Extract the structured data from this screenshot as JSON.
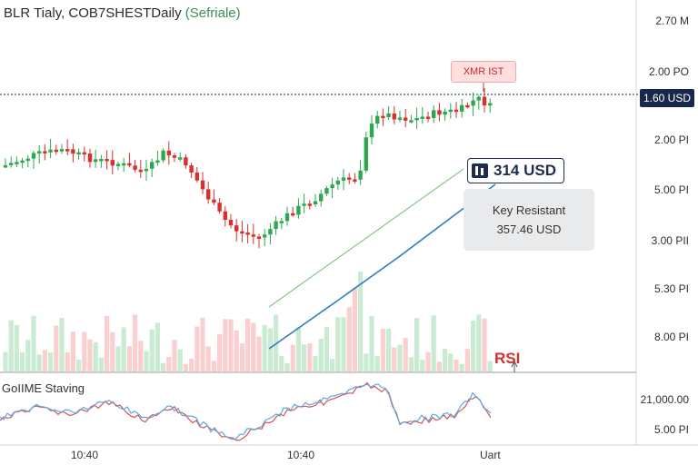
{
  "header": {
    "title": "BLR Tialy, COB7SHESTDaily",
    "tag": "(Sefriale)"
  },
  "price_axis": {
    "labels": [
      "2.70 M",
      "2.00 PO",
      "2.00 PI",
      "5.00 PI",
      "3.00 PII",
      "5.30 PI",
      "8.00 PI"
    ]
  },
  "current_price": "1.60 USD",
  "marker": "XMR IST",
  "callout": {
    "value": "314 USD",
    "icon": "chart-bars-icon",
    "box_line1": "Key Resistant",
    "box_line2": "357.46 USD"
  },
  "rsi": {
    "marker_label": "RSI",
    "panel_title": "GoIIME Staving",
    "axis_labels": [
      "21,000.00",
      "5.00 PI"
    ]
  },
  "time_axis": {
    "labels": [
      "10:40",
      "10:40",
      "Uart"
    ]
  },
  "colors": {
    "up": "#2ea84f",
    "down": "#d9302c",
    "volume_up": "#c8ebd2",
    "volume_down": "#fbcfcf",
    "price_tag": "#17284a",
    "trend_green": "#8bc48a",
    "trend_blue": "#2f7dbf",
    "rsi_red": "#d9534f",
    "rsi_blue": "#5aa9e6"
  }
}
